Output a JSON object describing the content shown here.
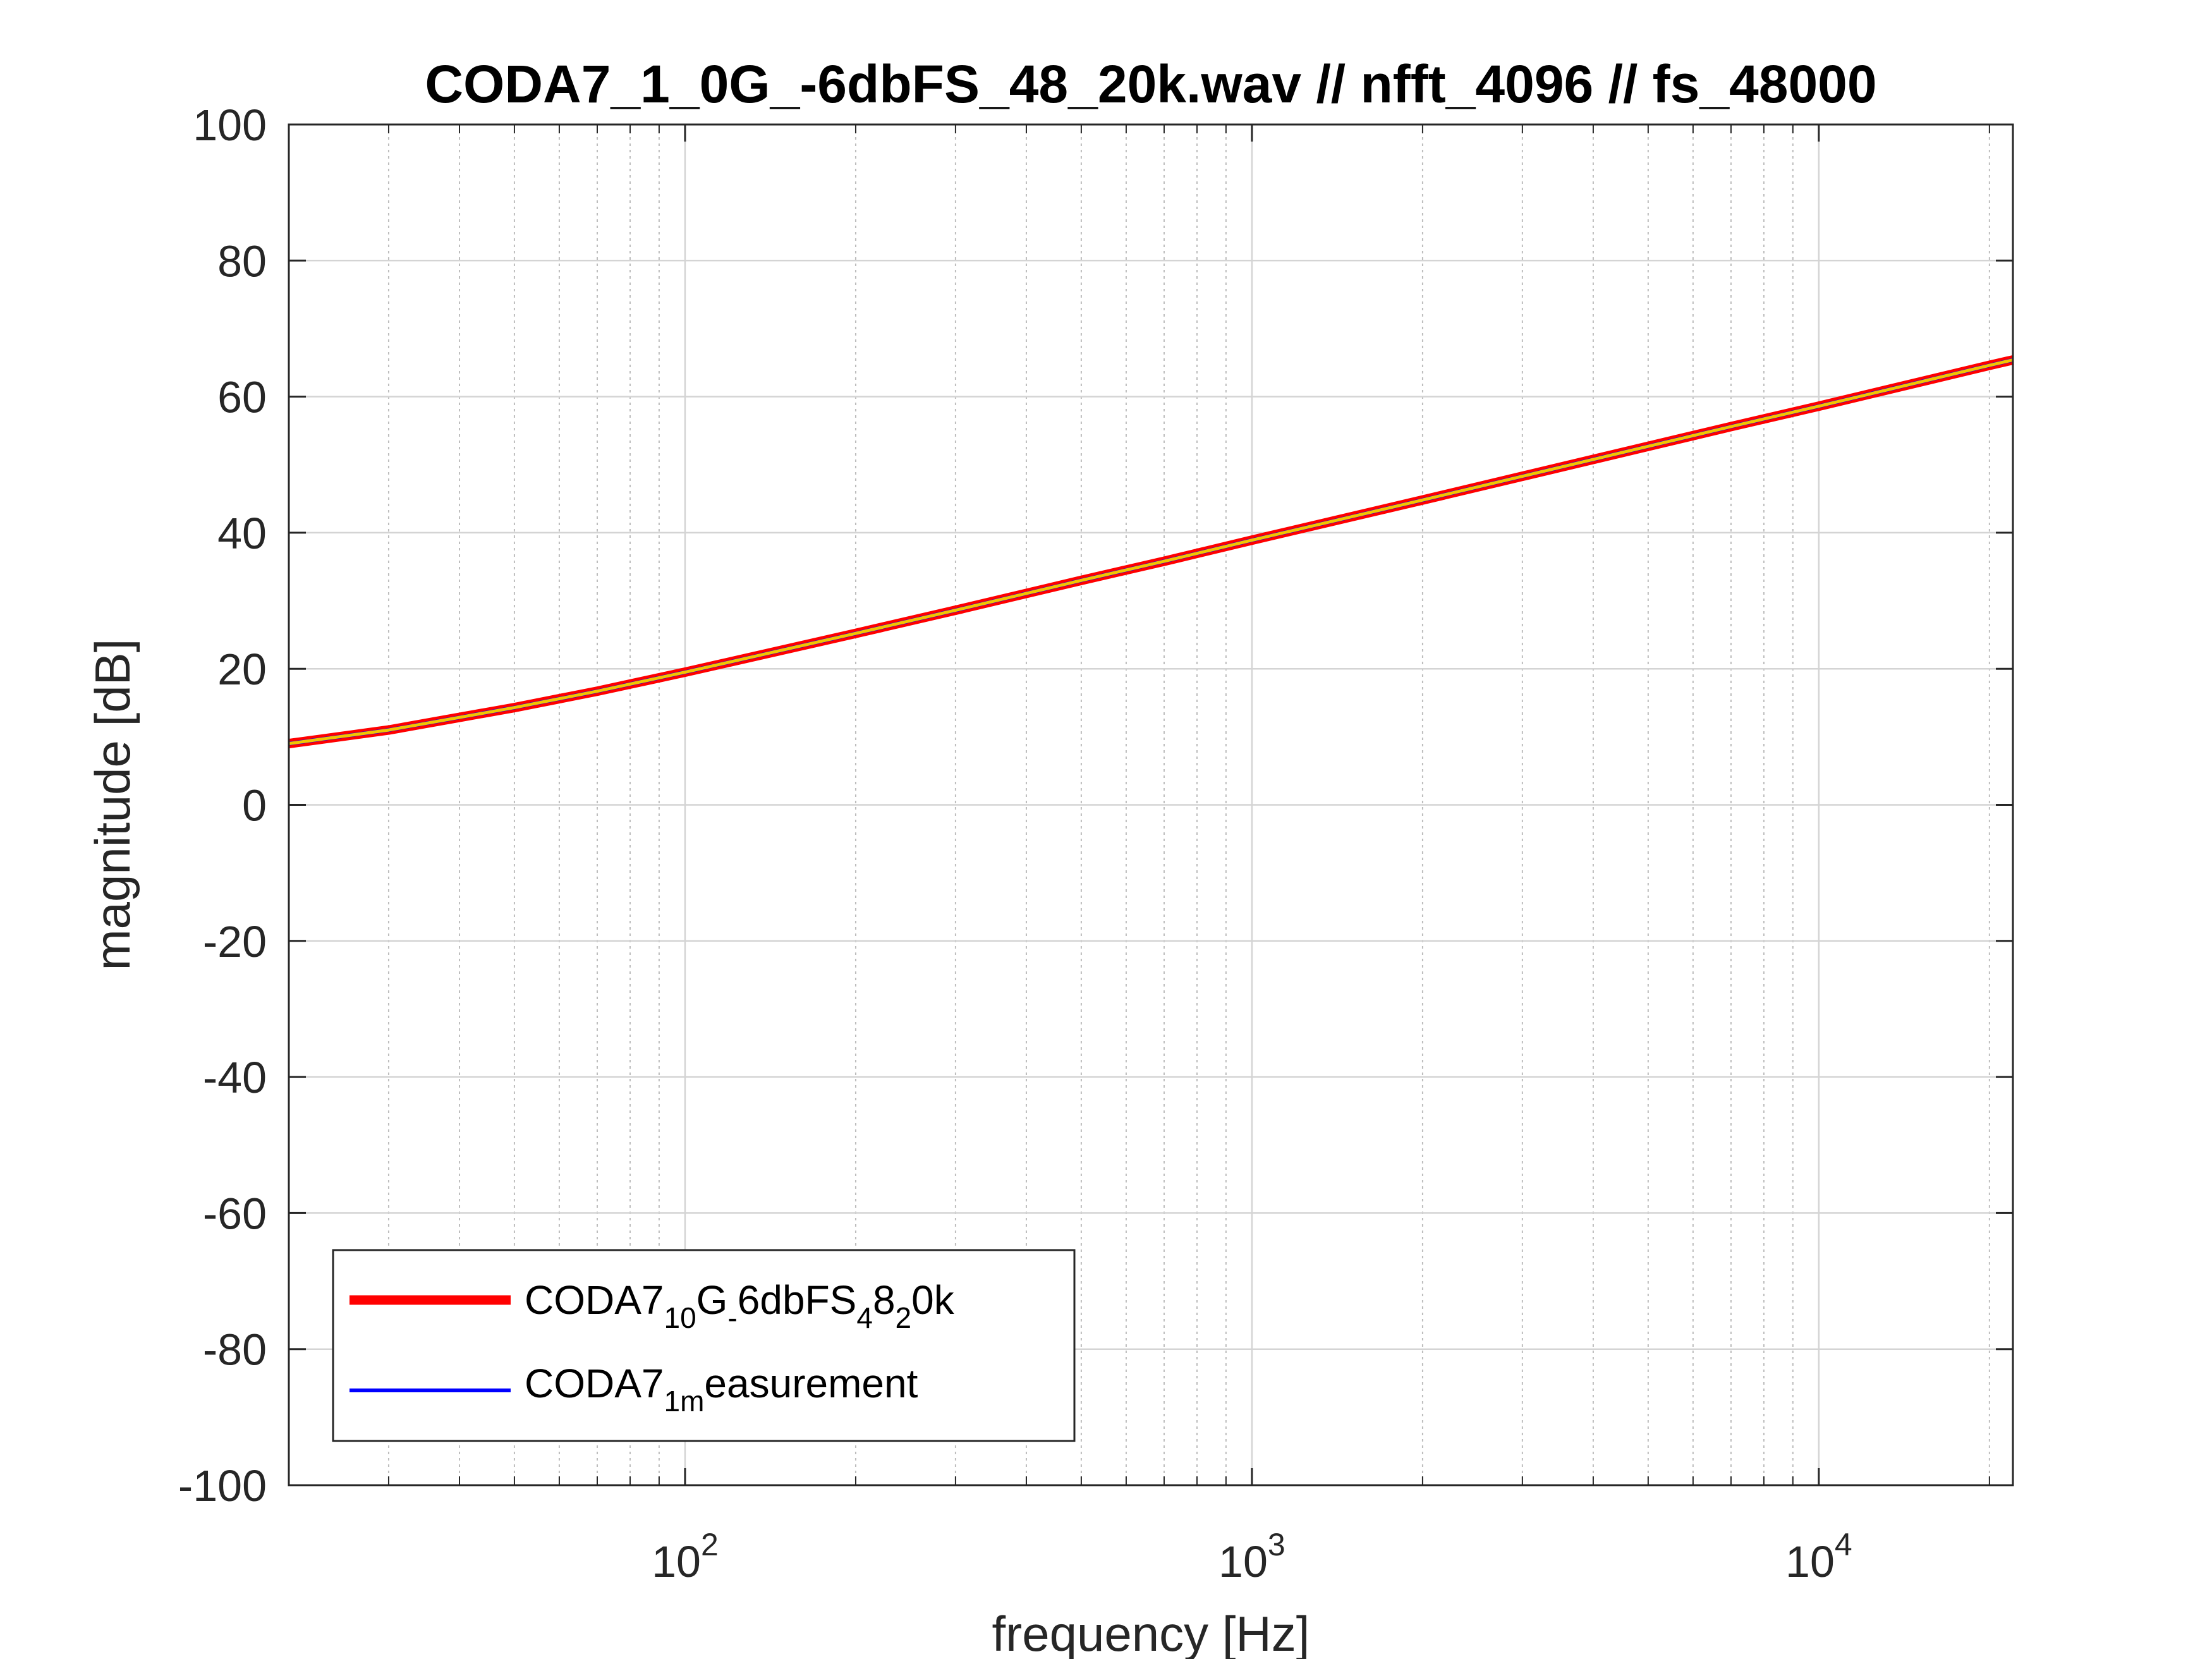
{
  "chart_data": {
    "type": "line",
    "title": "CODA7_1_0G_-6dbFS_48_20k.wav // nfft_4096 // fs_48000",
    "xlabel": "frequency [Hz]",
    "ylabel": "magnitude [dB]",
    "xscale": "log",
    "xlim": [
      20,
      22000
    ],
    "ylim": [
      -100,
      100
    ],
    "xticks": [
      100,
      1000,
      10000
    ],
    "xtick_labels": [
      {
        "base": "10",
        "exp": "2"
      },
      {
        "base": "10",
        "exp": "3"
      },
      {
        "base": "10",
        "exp": "4"
      }
    ],
    "yticks": [
      -100,
      -80,
      -60,
      -40,
      -20,
      0,
      20,
      40,
      60,
      80,
      100
    ],
    "ytick_labels": [
      "-100",
      "-80",
      "-60",
      "-40",
      "-20",
      "0",
      "20",
      "40",
      "60",
      "80",
      "100"
    ],
    "grid": true,
    "legend_position": "bottom-left",
    "series": [
      {
        "name": "CODA7_10G_-6dbFS_48_20k",
        "legend_parts": [
          {
            "t": "CODA7",
            "s": false
          },
          {
            "t": "10",
            "s": true
          },
          {
            "t": "G",
            "s": false
          },
          {
            "t": "-",
            "s": true
          },
          {
            "t": "6dbFS",
            "s": false
          },
          {
            "t": "4",
            "s": true
          },
          {
            "t": "8",
            "s": false
          },
          {
            "t": "2",
            "s": true
          },
          {
            "t": "0k",
            "s": false
          }
        ],
        "color": "#ff0000",
        "x": [
          20,
          30,
          50,
          70,
          100,
          200,
          300,
          500,
          700,
          1000,
          2000,
          3000,
          5000,
          7000,
          10000,
          20000,
          22000
        ],
        "y": [
          9.0,
          11.0,
          14.3,
          16.7,
          19.5,
          25.2,
          28.6,
          33.0,
          35.8,
          38.9,
          44.8,
          48.3,
          52.7,
          55.6,
          58.6,
          64.6,
          65.4
        ]
      },
      {
        "name": "CODA7_1measurement",
        "legend_parts": [
          {
            "t": "CODA7",
            "s": false
          },
          {
            "t": "1m",
            "s": true
          },
          {
            "t": "easurement",
            "s": false
          }
        ],
        "color": "#0000ff",
        "x": [
          20,
          30,
          50,
          70,
          100,
          200,
          300,
          500,
          700,
          1000,
          2000,
          3000,
          5000,
          7000,
          10000,
          20000,
          22000
        ],
        "y": [
          9.0,
          11.0,
          14.3,
          16.7,
          19.5,
          25.2,
          28.6,
          33.0,
          35.8,
          38.9,
          44.8,
          48.3,
          52.7,
          55.6,
          58.6,
          64.6,
          65.4
        ]
      }
    ],
    "overlay_color": "#f2c500"
  }
}
